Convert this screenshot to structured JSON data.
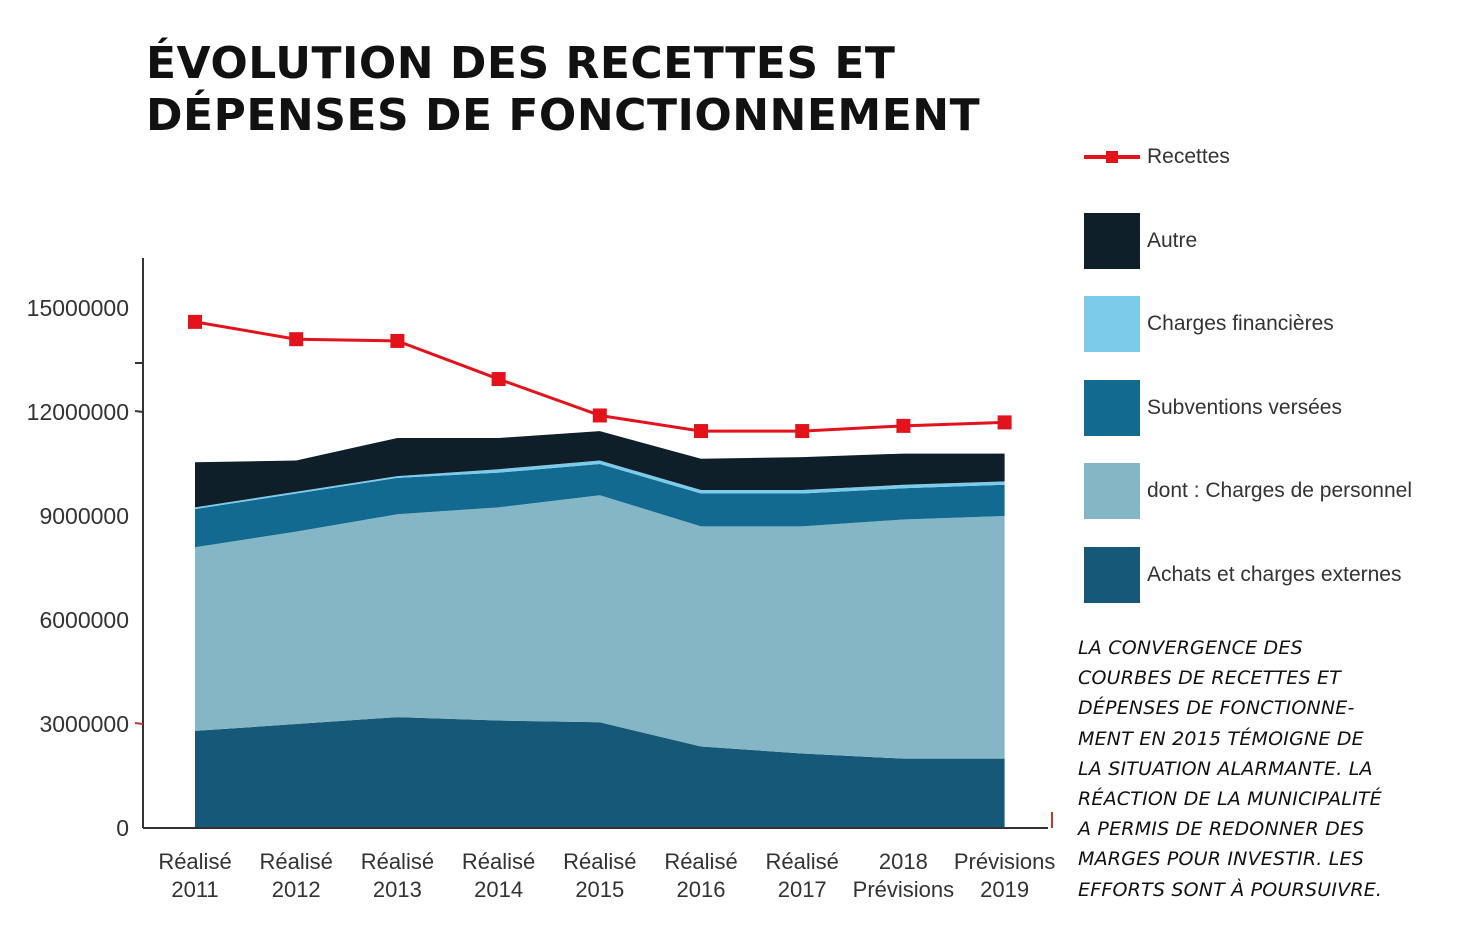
{
  "title": {
    "line1": "ÉVOLUTION DES RECETTES ET",
    "line2": "DÉPENSES DE FONCTIONNEMENT"
  },
  "note": {
    "lines": [
      "LA CONVERGENCE DES",
      "COURBES DE RECETTES ET",
      "DÉPENSES DE FONCTIONNE-",
      "MENT EN 2015 TÉMOIGNE DE",
      "LA SITUATION ALARMANTE. LA",
      "RÉACTION DE LA MUNICIPALITÉ",
      "A PERMIS DE REDONNER DES",
      "MARGES POUR INVESTIR. LES",
      "EFFORTS SONT À POURSUIVRE."
    ]
  },
  "legend": {
    "items": [
      {
        "label": "Recettes",
        "color": "#e3121b",
        "kind": "line"
      },
      {
        "label": "Autre",
        "color": "#0e1f29",
        "kind": "box"
      },
      {
        "label": "Charges financières",
        "color": "#7ccbea",
        "kind": "box"
      },
      {
        "label": "Subventions versées",
        "color": "#136a90",
        "kind": "box"
      },
      {
        "label": "dont : Charges de personnel",
        "color": "#85b6c6",
        "kind": "box"
      },
      {
        "label": "Achats et charges externes",
        "color": "#165877",
        "kind": "box"
      }
    ]
  },
  "chart_data": {
    "type": "area",
    "stacked": true,
    "categories": [
      [
        "Réalisé",
        "2011"
      ],
      [
        "Réalisé",
        "2012"
      ],
      [
        "Réalisé",
        "2013"
      ],
      [
        "Réalisé",
        "2014"
      ],
      [
        "Réalisé",
        "2015"
      ],
      [
        "Réalisé",
        "2016"
      ],
      [
        "Réalisé",
        "2017"
      ],
      [
        "2018",
        "Prévisions"
      ],
      [
        "Prévisions",
        "2019"
      ]
    ],
    "ylim": [
      0,
      16500000
    ],
    "yticks": [
      {
        "value": 0,
        "label": "0"
      },
      {
        "value": 3000000,
        "label": "3000000"
      },
      {
        "value": 6000000,
        "label": "6000000"
      },
      {
        "value": 9000000,
        "label": "9000000"
      },
      {
        "value": 12000000,
        "label": "12000000"
      },
      {
        "value": 15000000,
        "label": "15000000"
      }
    ],
    "series": [
      {
        "name": "Achats et charges externes",
        "color": "#165877",
        "values": [
          2800000,
          3000000,
          3200000,
          3100000,
          3050000,
          2350000,
          2150000,
          2000000,
          2000000
        ]
      },
      {
        "name": "dont : Charges de personnel",
        "color": "#85b6c6",
        "values": [
          5300000,
          5550000,
          5850000,
          6150000,
          6550000,
          6350000,
          6550000,
          6900000,
          7000000
        ]
      },
      {
        "name": "Subventions versées",
        "color": "#136a90",
        "values": [
          1100000,
          1100000,
          1050000,
          1000000,
          900000,
          950000,
          950000,
          900000,
          900000
        ]
      },
      {
        "name": "Charges financières",
        "color": "#7ccbea",
        "values": [
          50000,
          50000,
          50000,
          100000,
          100000,
          100000,
          100000,
          100000,
          100000
        ]
      },
      {
        "name": "Autre",
        "color": "#0e1f29",
        "values": [
          1300000,
          900000,
          1100000,
          900000,
          850000,
          900000,
          950000,
          900000,
          800000
        ]
      }
    ],
    "line": {
      "name": "Recettes",
      "color": "#e3121b",
      "values": [
        14600000,
        14100000,
        14050000,
        12950000,
        11900000,
        11450000,
        11450000,
        11600000,
        11700000
      ]
    }
  }
}
